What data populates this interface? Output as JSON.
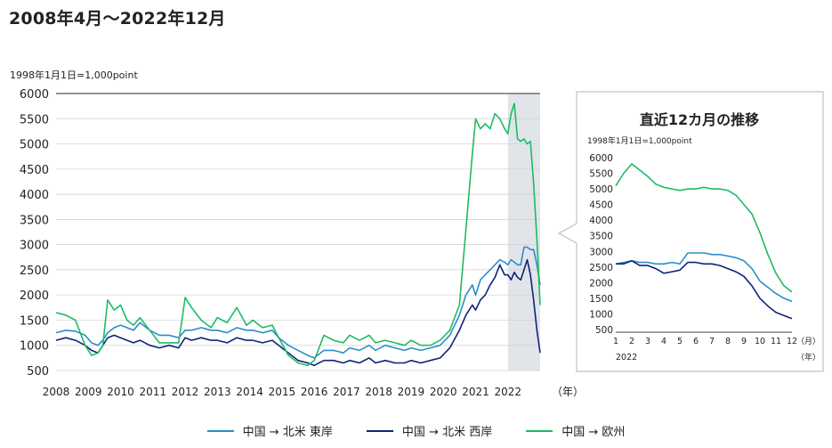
{
  "title": "2008年4月～2022年12月",
  "colors": {
    "east": "#2a8ec9",
    "west": "#0f237a",
    "europe": "#1dbb63",
    "highlight": "#e1e5ea",
    "grid": "#cfcfcf"
  },
  "chart_data": [
    {
      "type": "line",
      "note": "1998年1月1日=1,000point",
      "xlabel_unit": "（年）",
      "x_ticks": [
        "2008",
        "2009",
        "2010",
        "2011",
        "2012",
        "2013",
        "2014",
        "2015",
        "2016",
        "2017",
        "2018",
        "2019",
        "2020",
        "2021",
        "2022"
      ],
      "y_ticks": [
        "6000",
        "5500",
        "5000",
        "4500",
        "4000",
        "3500",
        "3000",
        "2500",
        "2000",
        "1500",
        "1000",
        "500"
      ],
      "ylim": [
        500,
        6000
      ],
      "xlim": [
        2008.0,
        2023.0
      ],
      "highlight_x": [
        2022.0,
        2023.0
      ],
      "series": [
        {
          "name": "中国 → 北米 東岸",
          "key": "east",
          "x": [
            2008.0,
            2008.3,
            2008.6,
            2008.9,
            2009.1,
            2009.3,
            2009.45,
            2009.6,
            2009.8,
            2010.0,
            2010.2,
            2010.4,
            2010.6,
            2010.9,
            2011.2,
            2011.5,
            2011.8,
            2012.0,
            2012.2,
            2012.5,
            2012.8,
            2013.0,
            2013.3,
            2013.6,
            2013.9,
            2014.1,
            2014.4,
            2014.7,
            2014.9,
            2015.2,
            2015.5,
            2015.8,
            2016.0,
            2016.3,
            2016.6,
            2016.9,
            2017.1,
            2017.4,
            2017.7,
            2017.9,
            2018.2,
            2018.5,
            2018.8,
            2019.0,
            2019.3,
            2019.6,
            2019.9,
            2020.2,
            2020.5,
            2020.7,
            2020.9,
            2021.0,
            2021.15,
            2021.3,
            2021.45,
            2021.6,
            2021.75,
            2021.9,
            2022.0,
            2022.1,
            2022.2,
            2022.3,
            2022.4,
            2022.5,
            2022.6,
            2022.7,
            2022.8,
            2022.9,
            2023.0
          ],
          "y": [
            1250,
            1300,
            1280,
            1200,
            1050,
            1000,
            1100,
            1250,
            1350,
            1400,
            1350,
            1300,
            1450,
            1300,
            1200,
            1200,
            1150,
            1300,
            1300,
            1350,
            1300,
            1300,
            1250,
            1350,
            1300,
            1300,
            1250,
            1300,
            1150,
            1000,
            900,
            800,
            750,
            900,
            900,
            850,
            950,
            900,
            1000,
            900,
            1000,
            950,
            900,
            950,
            900,
            950,
            1000,
            1200,
            1600,
            2000,
            2200,
            2000,
            2300,
            2400,
            2500,
            2600,
            2700,
            2650,
            2600,
            2700,
            2650,
            2600,
            2600,
            2950,
            2950,
            2900,
            2900,
            2600,
            2200
          ]
        },
        {
          "name": "中国 → 北米 西岸",
          "key": "west",
          "x": [
            2008.0,
            2008.3,
            2008.6,
            2008.9,
            2009.1,
            2009.3,
            2009.45,
            2009.6,
            2009.8,
            2010.0,
            2010.2,
            2010.4,
            2010.6,
            2010.9,
            2011.2,
            2011.5,
            2011.8,
            2012.0,
            2012.2,
            2012.5,
            2012.8,
            2013.0,
            2013.3,
            2013.6,
            2013.9,
            2014.1,
            2014.4,
            2014.7,
            2014.9,
            2015.2,
            2015.5,
            2015.8,
            2016.0,
            2016.3,
            2016.6,
            2016.9,
            2017.1,
            2017.4,
            2017.7,
            2017.9,
            2018.2,
            2018.5,
            2018.8,
            2019.0,
            2019.3,
            2019.6,
            2019.9,
            2020.2,
            2020.5,
            2020.7,
            2020.9,
            2021.0,
            2021.15,
            2021.3,
            2021.45,
            2021.6,
            2021.75,
            2021.9,
            2022.0,
            2022.1,
            2022.2,
            2022.3,
            2022.4,
            2022.5,
            2022.6,
            2022.7,
            2022.8,
            2022.9,
            2023.0
          ],
          "y": [
            1100,
            1150,
            1100,
            1000,
            900,
            850,
            1000,
            1150,
            1200,
            1150,
            1100,
            1050,
            1100,
            1000,
            950,
            1000,
            950,
            1150,
            1100,
            1150,
            1100,
            1100,
            1050,
            1150,
            1100,
            1100,
            1050,
            1100,
            1000,
            850,
            700,
            650,
            600,
            700,
            700,
            650,
            700,
            650,
            750,
            650,
            700,
            650,
            650,
            700,
            650,
            700,
            750,
            950,
            1300,
            1600,
            1800,
            1700,
            1900,
            2000,
            2200,
            2350,
            2600,
            2400,
            2400,
            2300,
            2450,
            2350,
            2300,
            2500,
            2700,
            2400,
            1900,
            1300,
            850
          ]
        },
        {
          "name": "中国 → 欧州",
          "key": "europe",
          "x": [
            2008.0,
            2008.3,
            2008.6,
            2008.9,
            2009.1,
            2009.3,
            2009.45,
            2009.6,
            2009.8,
            2010.0,
            2010.2,
            2010.4,
            2010.6,
            2010.9,
            2011.2,
            2011.5,
            2011.8,
            2012.0,
            2012.2,
            2012.5,
            2012.8,
            2013.0,
            2013.3,
            2013.6,
            2013.9,
            2014.1,
            2014.4,
            2014.7,
            2014.9,
            2015.2,
            2015.5,
            2015.8,
            2016.0,
            2016.3,
            2016.6,
            2016.9,
            2017.1,
            2017.4,
            2017.7,
            2017.9,
            2018.2,
            2018.5,
            2018.8,
            2019.0,
            2019.3,
            2019.6,
            2019.9,
            2020.2,
            2020.5,
            2020.7,
            2020.9,
            2021.0,
            2021.15,
            2021.3,
            2021.45,
            2021.6,
            2021.75,
            2021.9,
            2022.0,
            2022.1,
            2022.2,
            2022.3,
            2022.4,
            2022.5,
            2022.6,
            2022.7,
            2022.8,
            2022.9,
            2023.0
          ],
          "y": [
            1650,
            1600,
            1500,
            1000,
            800,
            850,
            1000,
            1900,
            1700,
            1800,
            1500,
            1400,
            1550,
            1300,
            1050,
            1050,
            1050,
            1950,
            1750,
            1500,
            1350,
            1550,
            1450,
            1750,
            1400,
            1500,
            1350,
            1400,
            1150,
            800,
            650,
            600,
            700,
            1200,
            1100,
            1050,
            1200,
            1100,
            1200,
            1050,
            1100,
            1050,
            1000,
            1100,
            1000,
            1000,
            1100,
            1300,
            1800,
            3300,
            4800,
            5500,
            5300,
            5400,
            5300,
            5600,
            5500,
            5300,
            5200,
            5600,
            5800,
            5100,
            5050,
            5100,
            5000,
            5050,
            4200,
            3100,
            1800
          ]
        }
      ]
    },
    {
      "type": "line",
      "title": "直近12カ月の推移",
      "note": "1998年1月1日=1,000point",
      "x_ticks": [
        "1",
        "2",
        "3",
        "4",
        "5",
        "6",
        "7",
        "8",
        "9",
        "10",
        "11",
        "12"
      ],
      "x_month_unit": "（月）",
      "x_year_label": "2022",
      "x_year_unit": "（年）",
      "y_ticks": [
        "6000",
        "5500",
        "5000",
        "4500",
        "4000",
        "3500",
        "3000",
        "2500",
        "2000",
        "1500",
        "1000",
        "500"
      ],
      "ylim": [
        500,
        6000
      ],
      "series": [
        {
          "name": "中国 → 北米 東岸",
          "key": "east",
          "x": [
            1,
            1.5,
            2,
            2.5,
            3,
            3.5,
            4,
            4.5,
            5,
            5.5,
            6,
            6.5,
            7,
            7.5,
            8,
            8.5,
            9,
            9.5,
            10,
            10.5,
            11,
            11.5,
            12
          ],
          "y": [
            2600,
            2650,
            2700,
            2650,
            2650,
            2600,
            2600,
            2650,
            2600,
            2950,
            2950,
            2950,
            2900,
            2900,
            2850,
            2800,
            2700,
            2450,
            2050,
            1850,
            1650,
            1500,
            1400
          ]
        },
        {
          "name": "中国 → 北米 西岸",
          "key": "west",
          "x": [
            1,
            1.5,
            2,
            2.5,
            3,
            3.5,
            4,
            4.5,
            5,
            5.5,
            6,
            6.5,
            7,
            7.5,
            8,
            8.5,
            9,
            9.5,
            10,
            10.5,
            11,
            11.5,
            12
          ],
          "y": [
            2600,
            2600,
            2700,
            2550,
            2550,
            2450,
            2300,
            2350,
            2400,
            2650,
            2650,
            2600,
            2600,
            2550,
            2450,
            2350,
            2200,
            1900,
            1500,
            1250,
            1050,
            950,
            850
          ]
        },
        {
          "name": "中国 → 欧州",
          "key": "europe",
          "x": [
            1,
            1.5,
            2,
            2.5,
            3,
            3.5,
            4,
            4.5,
            5,
            5.5,
            6,
            6.5,
            7,
            7.5,
            8,
            8.5,
            9,
            9.5,
            10,
            10.5,
            11,
            11.5,
            12
          ],
          "y": [
            5100,
            5500,
            5800,
            5600,
            5400,
            5150,
            5050,
            5000,
            4950,
            5000,
            5000,
            5050,
            5000,
            5000,
            4950,
            4800,
            4500,
            4200,
            3600,
            2900,
            2300,
            1900,
            1700
          ]
        }
      ]
    }
  ],
  "legend": [
    {
      "label": "中国 → 北米 東岸",
      "key": "east"
    },
    {
      "label": "中国 → 北米 西岸",
      "key": "west"
    },
    {
      "label": "中国 → 欧州",
      "key": "europe"
    }
  ]
}
